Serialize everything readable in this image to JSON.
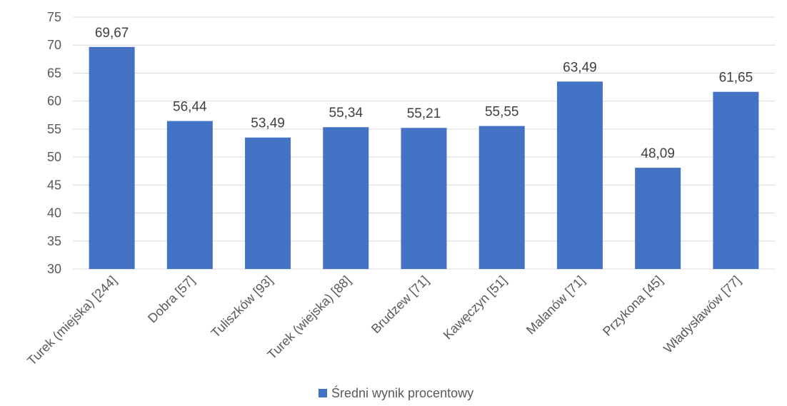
{
  "chart_data": {
    "type": "bar",
    "categories": [
      "Turek (miejska) [244]",
      "Dobra [57]",
      "Tuliszków [93]",
      "Turek (wiejska) [88]",
      "Brudzew [71]",
      "Kawęczyn [51]",
      "Malanów [71]",
      "Przykona [45]",
      "Władysławów [77]"
    ],
    "series": [
      {
        "name": "Średni wynik procentowy",
        "values": [
          69.67,
          56.44,
          53.49,
          55.34,
          55.21,
          55.55,
          63.49,
          48.09,
          61.65
        ],
        "labels": [
          "69,67",
          "56,44",
          "53,49",
          "55,34",
          "55,21",
          "55,55",
          "63,49",
          "48,09",
          "61,65"
        ],
        "color": "#4472c4"
      }
    ],
    "ylim": [
      30,
      75
    ],
    "yticks": [
      "30",
      "35",
      "40",
      "45",
      "50",
      "55",
      "60",
      "65",
      "70",
      "75"
    ],
    "grid": true,
    "legend_position": "bottom",
    "title": "",
    "xlabel": "",
    "ylabel": ""
  }
}
